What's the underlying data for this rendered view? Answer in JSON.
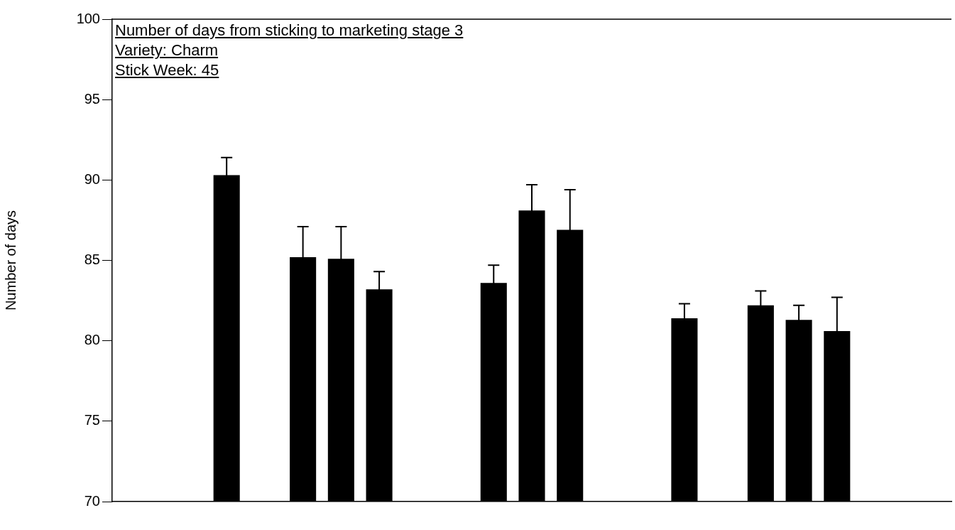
{
  "chart_data": {
    "type": "bar",
    "title": "Number of days from sticking to marketing stage 3",
    "annotations": [
      "Variety:  Charm",
      "Stick Week:  45"
    ],
    "ylabel": "Number of days",
    "categories": [
      null,
      null,
      null,
      null,
      null,
      null,
      null,
      null,
      null,
      null,
      null,
      null,
      null,
      null,
      null,
      null,
      null,
      null,
      null,
      null,
      null,
      null,
      null
    ],
    "values": [
      null,
      null,
      null,
      90.3,
      null,
      85.2,
      85.1,
      83.2,
      null,
      null,
      83.6,
      88.1,
      86.9,
      null,
      null,
      81.4,
      null,
      82.2,
      81.3,
      80.6,
      null,
      null,
      null
    ],
    "errors": [
      null,
      null,
      null,
      1.1,
      null,
      1.9,
      2.0,
      1.1,
      null,
      null,
      1.1,
      1.6,
      2.5,
      null,
      null,
      0.9,
      null,
      0.9,
      0.9,
      2.1,
      null,
      null,
      null
    ],
    "color": "#000000",
    "ylim": [
      70,
      100
    ],
    "yticks": [
      70,
      75,
      80,
      85,
      90,
      95,
      100
    ],
    "tick_labels": "y"
  }
}
